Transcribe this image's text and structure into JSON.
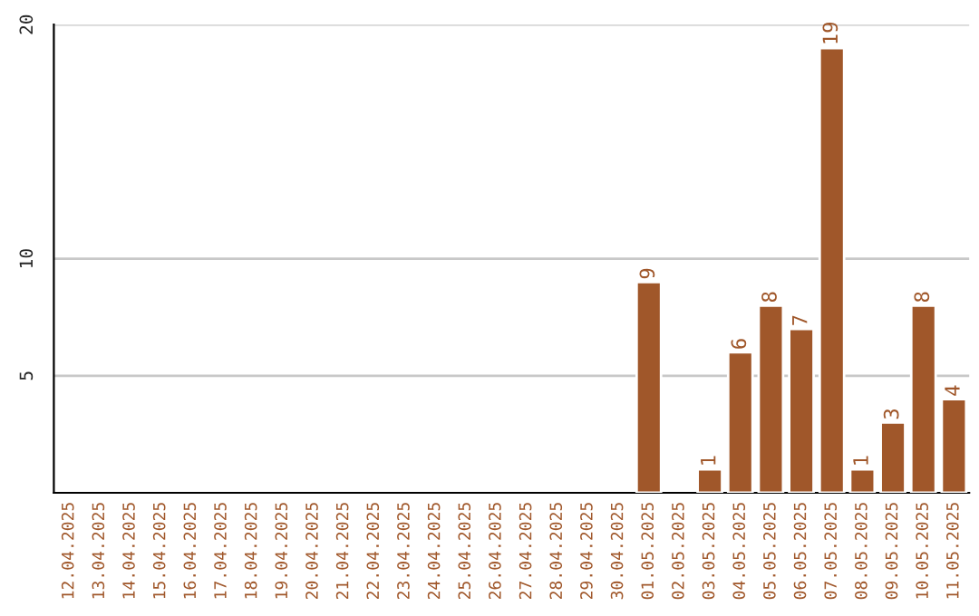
{
  "chart_data": {
    "type": "bar",
    "categories": [
      "12.04.2025",
      "13.04.2025",
      "14.04.2025",
      "15.04.2025",
      "16.04.2025",
      "17.04.2025",
      "18.04.2025",
      "19.04.2025",
      "20.04.2025",
      "21.04.2025",
      "22.04.2025",
      "23.04.2025",
      "24.04.2025",
      "25.04.2025",
      "26.04.2025",
      "27.04.2025",
      "28.04.2025",
      "29.04.2025",
      "30.04.2025",
      "01.05.2025",
      "02.05.2025",
      "03.05.2025",
      "04.05.2025",
      "05.05.2025",
      "06.05.2025",
      "07.05.2025",
      "08.05.2025",
      "09.05.2025",
      "10.05.2025",
      "11.05.2025"
    ],
    "values": [
      null,
      null,
      null,
      null,
      null,
      null,
      null,
      null,
      null,
      null,
      null,
      null,
      null,
      null,
      null,
      null,
      null,
      null,
      null,
      9,
      null,
      1,
      6,
      8,
      7,
      19,
      1,
      3,
      8,
      4
    ],
    "value_labels": [
      null,
      null,
      null,
      null,
      null,
      null,
      null,
      null,
      null,
      null,
      null,
      null,
      null,
      null,
      null,
      null,
      null,
      null,
      null,
      "9",
      null,
      "1",
      "6",
      "8",
      "7",
      "19",
      "1",
      "3",
      "8",
      "4"
    ],
    "color": "#a0572a",
    "ylim": [
      0,
      20
    ],
    "yticks": [
      5,
      10,
      20
    ],
    "grid": "y"
  }
}
